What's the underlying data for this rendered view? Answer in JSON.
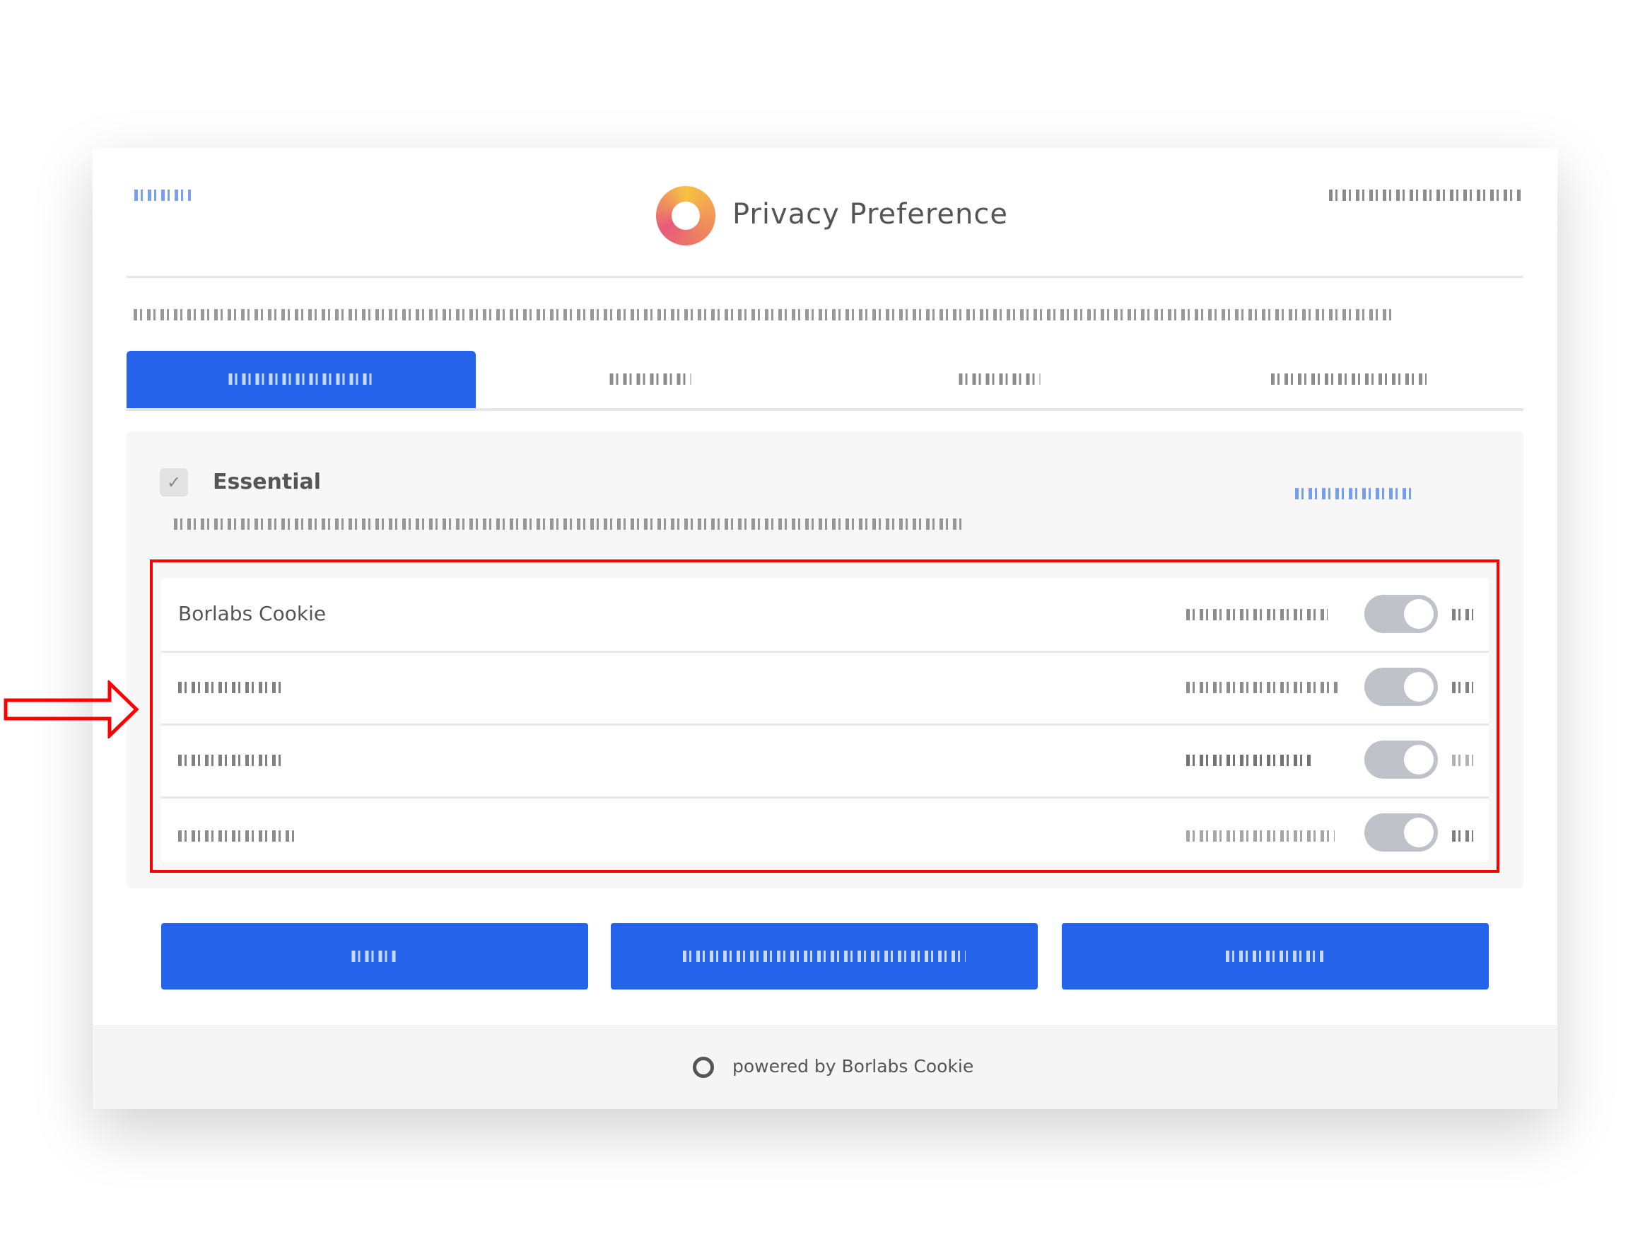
{
  "dialog": {
    "title": "Privacy Preference",
    "logo_icon": "borlabs-logo-icon"
  },
  "tabs": [
    {
      "active": true
    },
    {
      "active": false
    },
    {
      "active": false
    },
    {
      "active": false
    }
  ],
  "category": {
    "name": "Essential",
    "checked": true,
    "checkbox_icon": "checkmark-icon"
  },
  "services": [
    {
      "name": "Borlabs Cookie",
      "enabled": true
    },
    {
      "enabled": true
    },
    {
      "enabled": true
    },
    {
      "enabled": true
    }
  ],
  "footer": {
    "powered_by": "powered by Borlabs Cookie"
  },
  "colors": {
    "accent": "#2563eb",
    "highlight": "#ff0000",
    "toggle": "#bfc3c9"
  }
}
